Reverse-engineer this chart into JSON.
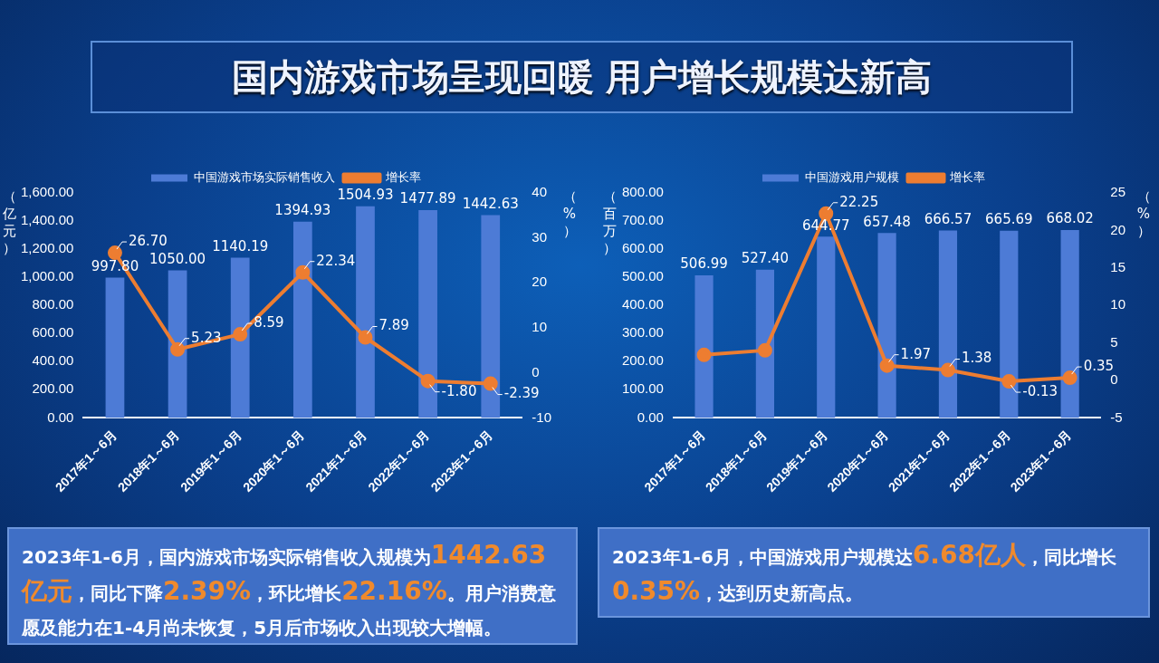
{
  "chart_data": [
    {
      "type": "other",
      "title": "国内游戏市场呈现回暖 用户增长规模达新高"
    },
    {
      "type": "bar",
      "categories": [
        "2017年1～6月",
        "2018年1～6月",
        "2019年1～6月",
        "2020年1～6月",
        "2021年1～6月",
        "2022年1～6月",
        "2023年1～6月"
      ],
      "series": [
        {
          "name": "中国游戏市场实际销售收入",
          "type": "bar",
          "color": "#4d7bd6",
          "values": [
            997.8,
            1050.0,
            1140.19,
            1394.93,
            1504.93,
            1477.89,
            1442.63
          ],
          "value_labels": [
            "997.80",
            "1050.00",
            "1140.19",
            "1394.93",
            "1504.93",
            "1477.89",
            "1442.63"
          ]
        },
        {
          "name": "增长率",
          "type": "line",
          "axis": "y2",
          "color": "#ed7d31",
          "values": [
            26.7,
            5.23,
            8.59,
            22.34,
            7.89,
            -1.8,
            -2.39
          ],
          "value_labels": [
            "26.70",
            "5.23",
            "8.59",
            "22.34",
            "7.89",
            "-1.80",
            "-2.39"
          ]
        }
      ],
      "ylabel": "（亿元）",
      "y2label": "（%）",
      "ylim": [
        0,
        1600
      ],
      "yticks": [
        {
          "value": 0,
          "label": "0.00"
        },
        {
          "value": 200,
          "label": "200.00"
        },
        {
          "value": 400,
          "label": "400.00"
        },
        {
          "value": 600,
          "label": "600.00"
        },
        {
          "value": 800,
          "label": "800.00"
        },
        {
          "value": 1000,
          "label": "1,000.00"
        },
        {
          "value": 1200,
          "label": "1,200.00"
        },
        {
          "value": 1400,
          "label": "1,400.00"
        },
        {
          "value": 1600,
          "label": "1,600.00"
        }
      ],
      "y2lim": [
        -10,
        40
      ],
      "y2ticks": [
        -10,
        0,
        10,
        20,
        30,
        40
      ],
      "legend": "top",
      "marker": "circle",
      "grid": false
    },
    {
      "type": "bar",
      "categories": [
        "2017年1～6月",
        "2018年1～6月",
        "2019年1～6月",
        "2020年1～6月",
        "2021年1～6月",
        "2022年1～6月",
        "2023年1～6月"
      ],
      "series": [
        {
          "name": "中国游戏用户规模",
          "type": "bar",
          "color": "#4d7bd6",
          "values": [
            506.99,
            527.4,
            644.77,
            657.48,
            666.57,
            665.69,
            668.02
          ],
          "value_labels": [
            "506.99",
            "527.40",
            "644.77",
            "657.48",
            "666.57",
            "665.69",
            "668.02"
          ]
        },
        {
          "name": "增长率",
          "type": "line",
          "axis": "y2",
          "color": "#ed7d31",
          "values": [
            3.4,
            4.0,
            22.25,
            1.97,
            1.38,
            -0.13,
            0.35
          ],
          "value_labels": [
            null,
            null,
            "22.25",
            "1.97",
            "1.38",
            "-0.13",
            "0.35"
          ]
        }
      ],
      "ylabel": "（百万）",
      "y2label": "（%）",
      "ylim": [
        0,
        800
      ],
      "yticks": [
        {
          "value": 0,
          "label": "0.00"
        },
        {
          "value": 100,
          "label": "100.00"
        },
        {
          "value": 200,
          "label": "200.00"
        },
        {
          "value": 300,
          "label": "300.00"
        },
        {
          "value": 400,
          "label": "400.00"
        },
        {
          "value": 500,
          "label": "500.00"
        },
        {
          "value": 600,
          "label": "600.00"
        },
        {
          "value": 700,
          "label": "700.00"
        },
        {
          "value": 800,
          "label": "800.00"
        }
      ],
      "y2lim": [
        -5,
        25
      ],
      "y2ticks": [
        -5,
        0,
        5,
        10,
        15,
        20,
        25
      ],
      "legend": "top",
      "marker": "circle",
      "grid": false
    },
    {
      "type": "other",
      "annotations": [
        "2023年1-6月，国内游戏市场实际销售收入规模为",
        "1442.63亿元",
        "，同比下降",
        "2.39%",
        "，环比增长",
        "22.16%",
        "。用户消费意愿及能力在1-4月尚未恢复，5月后市场收入出现较大增幅。"
      ]
    },
    {
      "type": "other",
      "annotations": [
        "2023年1-6月，中国游戏用户规模达",
        "6.68亿人",
        "，同比增长",
        "0.35%",
        "，达到历史新高点。"
      ]
    }
  ]
}
